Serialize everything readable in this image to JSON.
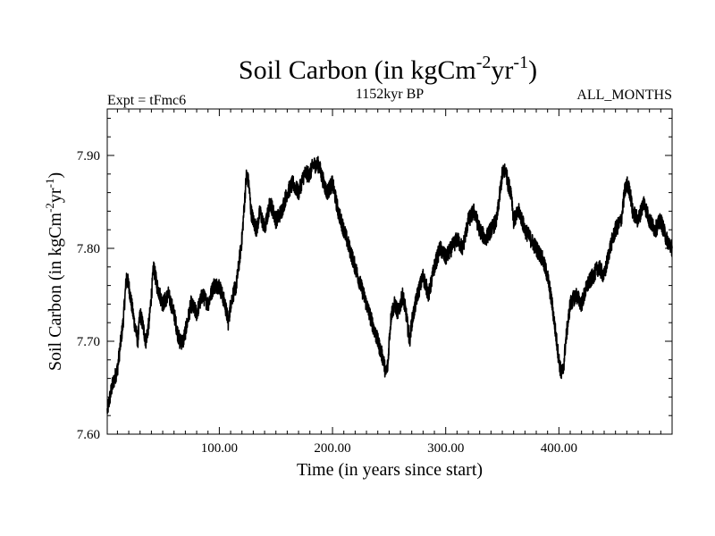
{
  "chart_data": {
    "type": "line",
    "title_main": "Soil Carbon (in kgCm",
    "title_exp1": "-2",
    "title_mid": "yr",
    "title_exp2": "-1",
    "title_close": ")",
    "left_label": "Expt = tFmc6",
    "center_label": "1152kyr BP",
    "right_label": "ALL_MONTHS",
    "xlabel": "Time (in years since start)",
    "ylabel_main": "Soil Carbon (in kgCm",
    "ylabel_exp1": "-2",
    "ylabel_mid": "yr",
    "ylabel_exp2": "-1",
    "ylabel_close": ")",
    "xlim": [
      1,
      500
    ],
    "ylim": [
      7.6,
      7.95
    ],
    "xticks": [
      {
        "value": 100,
        "label": "100.00"
      },
      {
        "value": 200,
        "label": "200.00"
      },
      {
        "value": 300,
        "label": "300.00"
      },
      {
        "value": 400,
        "label": "400.00"
      }
    ],
    "yticks": [
      {
        "value": 7.6,
        "label": "7.60"
      },
      {
        "value": 7.7,
        "label": "7.70"
      },
      {
        "value": 7.8,
        "label": "7.80"
      },
      {
        "value": 7.9,
        "label": "7.90"
      }
    ],
    "series": [
      {
        "name": "Soil Carbon",
        "color": "#000000",
        "x": [
          1,
          5,
          10,
          15,
          18,
          20,
          25,
          28,
          30,
          32,
          35,
          38,
          40,
          42,
          45,
          50,
          55,
          60,
          63,
          65,
          68,
          70,
          75,
          80,
          85,
          90,
          95,
          100,
          105,
          108,
          110,
          112,
          115,
          120,
          124,
          126,
          128,
          130,
          133,
          136,
          140,
          145,
          150,
          155,
          160,
          165,
          170,
          175,
          180,
          183,
          185,
          188,
          190,
          195,
          200,
          205,
          210,
          215,
          220,
          225,
          230,
          235,
          240,
          245,
          247,
          249,
          250,
          252,
          255,
          258,
          262,
          265,
          268,
          270,
          275,
          280,
          285,
          290,
          295,
          300,
          305,
          310,
          315,
          320,
          325,
          330,
          335,
          340,
          345,
          348,
          350,
          353,
          355,
          358,
          360,
          365,
          370,
          375,
          380,
          385,
          390,
          394,
          398,
          400,
          402,
          404,
          406,
          410,
          415,
          420,
          425,
          430,
          435,
          440,
          445,
          450,
          455,
          458,
          460,
          463,
          465,
          470,
          475,
          480,
          485,
          490,
          495,
          500
        ],
        "y": [
          7.625,
          7.65,
          7.67,
          7.72,
          7.77,
          7.76,
          7.72,
          7.7,
          7.73,
          7.72,
          7.7,
          7.72,
          7.75,
          7.78,
          7.76,
          7.74,
          7.75,
          7.73,
          7.71,
          7.7,
          7.7,
          7.71,
          7.74,
          7.73,
          7.75,
          7.74,
          7.76,
          7.76,
          7.74,
          7.72,
          7.74,
          7.75,
          7.76,
          7.81,
          7.88,
          7.87,
          7.84,
          7.83,
          7.82,
          7.84,
          7.82,
          7.85,
          7.83,
          7.84,
          7.86,
          7.87,
          7.86,
          7.88,
          7.88,
          7.89,
          7.89,
          7.89,
          7.88,
          7.86,
          7.87,
          7.84,
          7.82,
          7.8,
          7.78,
          7.76,
          7.74,
          7.72,
          7.7,
          7.68,
          7.665,
          7.675,
          7.7,
          7.73,
          7.74,
          7.73,
          7.75,
          7.73,
          7.7,
          7.72,
          7.75,
          7.77,
          7.75,
          7.78,
          7.8,
          7.79,
          7.8,
          7.81,
          7.8,
          7.83,
          7.84,
          7.82,
          7.81,
          7.82,
          7.83,
          7.86,
          7.88,
          7.885,
          7.87,
          7.86,
          7.83,
          7.84,
          7.82,
          7.81,
          7.8,
          7.79,
          7.77,
          7.74,
          7.7,
          7.68,
          7.665,
          7.67,
          7.7,
          7.74,
          7.75,
          7.74,
          7.76,
          7.77,
          7.78,
          7.77,
          7.8,
          7.82,
          7.83,
          7.86,
          7.87,
          7.86,
          7.84,
          7.83,
          7.85,
          7.83,
          7.82,
          7.83,
          7.81,
          7.8
        ]
      }
    ]
  }
}
